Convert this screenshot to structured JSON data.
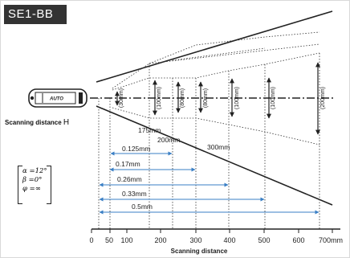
{
  "diagram": {
    "model_label": "SE1-BB",
    "scanning_distance_h_label": "Scanning distance",
    "scanning_distance_h_letter": "H",
    "params": {
      "alpha": "α =12°",
      "beta": "β =0°",
      "phi": "φ =∞"
    },
    "x_axis": {
      "title": "Scanning distance",
      "unit": "mm",
      "ticks": [
        "0",
        "50",
        "100",
        "200",
        "300",
        "400",
        "500",
        "600",
        "700mm"
      ]
    },
    "focus_labels": [
      "175mm",
      "200mm",
      "300mm"
    ],
    "beam_widths": [
      "(30mm)",
      "(100mm)",
      "(80mm)",
      "(80mm)",
      "(100mm)",
      "(100mm)",
      "(200mm)"
    ],
    "resolutions": [
      "0.125mm",
      "0.17mm",
      "0.26mm",
      "0.33mm",
      "0.5mm"
    ],
    "colors": {
      "ink": "#222222",
      "arrow": "#3a7fc4",
      "badge": "#333333"
    },
    "icons": [
      "scanner-icon"
    ]
  }
}
